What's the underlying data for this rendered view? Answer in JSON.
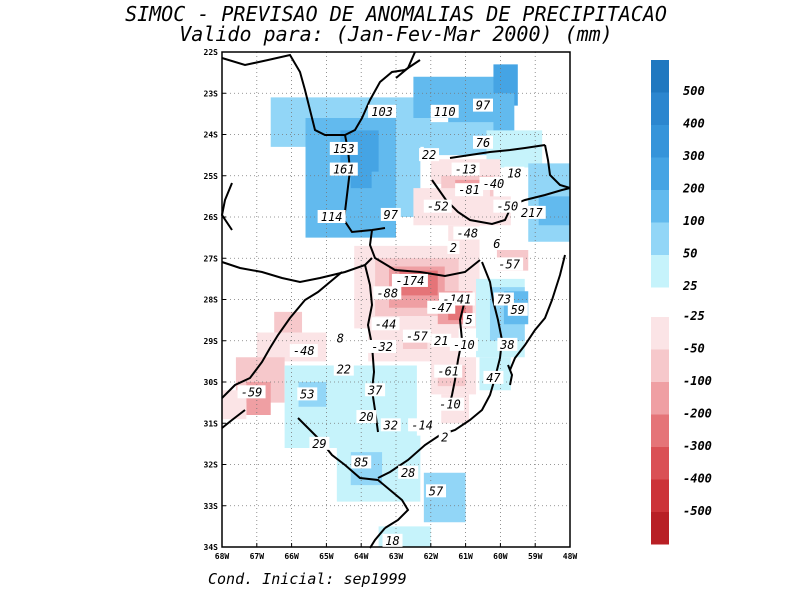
{
  "title_line1": "SIMOC - PREVISAO DE ANOMALIAS DE PRECIPITACAO",
  "title_line2": "Valido para: (Jan-Fev-Mar 2000) (mm)",
  "footer": "Cond. Inicial: sep1999",
  "axes": {
    "lon_ticks": [
      "68W",
      "67W",
      "66W",
      "65W",
      "64W",
      "63W",
      "62W",
      "61W",
      "60W",
      "59W",
      "48W"
    ],
    "lat_ticks": [
      "22S",
      "23S",
      "24S",
      "25S",
      "26S",
      "27S",
      "28S",
      "29S",
      "30S",
      "31S",
      "32S",
      "33S",
      "34S"
    ]
  },
  "legend": {
    "positive": [
      {
        "label": "500",
        "color": "#1f78c0"
      },
      {
        "label": "400",
        "color": "#2b86cf"
      },
      {
        "label": "300",
        "color": "#3594da"
      },
      {
        "label": "200",
        "color": "#45a4e4"
      },
      {
        "label": "100",
        "color": "#62baee"
      },
      {
        "label": "50",
        "color": "#92d6f7"
      },
      {
        "label": "25",
        "color": "#c6f3fb"
      }
    ],
    "negative": [
      {
        "label": "-25",
        "color": "#fbe4e6"
      },
      {
        "label": "-50",
        "color": "#f6c8cb"
      },
      {
        "label": "-100",
        "color": "#ef9fa3"
      },
      {
        "label": "-200",
        "color": "#e57478"
      },
      {
        "label": "-300",
        "color": "#da5055"
      },
      {
        "label": "-400",
        "color": "#cc3338"
      },
      {
        "label": "-500",
        "color": "#b81f25"
      }
    ]
  },
  "value_labels": [
    {
      "lon": -63.4,
      "lat": -23.45,
      "text": "103"
    },
    {
      "lon": -61.6,
      "lat": -23.45,
      "text": "110"
    },
    {
      "lon": -60.5,
      "lat": -23.3,
      "text": "97"
    },
    {
      "lon": -64.5,
      "lat": -24.35,
      "text": "153"
    },
    {
      "lon": -64.5,
      "lat": -24.85,
      "text": "161"
    },
    {
      "lon": -60.5,
      "lat": -24.2,
      "text": "76"
    },
    {
      "lon": -62.05,
      "lat": -24.5,
      "text": "22"
    },
    {
      "lon": -61.0,
      "lat": -24.85,
      "text": "-13"
    },
    {
      "lon": -59.6,
      "lat": -24.95,
      "text": "18"
    },
    {
      "lon": -60.2,
      "lat": -25.2,
      "text": "-40"
    },
    {
      "lon": -60.9,
      "lat": -25.35,
      "text": "-81"
    },
    {
      "lon": -61.8,
      "lat": -25.75,
      "text": "-52"
    },
    {
      "lon": -59.8,
      "lat": -25.75,
      "text": "-50"
    },
    {
      "lon": -59.1,
      "lat": -25.9,
      "text": "217"
    },
    {
      "lon": -63.15,
      "lat": -25.95,
      "text": "97"
    },
    {
      "lon": -64.85,
      "lat": -26.0,
      "text": "114"
    },
    {
      "lon": -60.95,
      "lat": -26.4,
      "text": "-48"
    },
    {
      "lon": -60.1,
      "lat": -26.65,
      "text": "6"
    },
    {
      "lon": -61.35,
      "lat": -26.75,
      "text": "2"
    },
    {
      "lon": -59.75,
      "lat": -27.15,
      "text": "-57"
    },
    {
      "lon": -62.6,
      "lat": -27.55,
      "text": "-174"
    },
    {
      "lon": -63.25,
      "lat": -27.85,
      "text": "-88"
    },
    {
      "lon": -61.25,
      "lat": -28.0,
      "text": "-141"
    },
    {
      "lon": -61.7,
      "lat": -28.2,
      "text": "-47"
    },
    {
      "lon": -59.9,
      "lat": -28.0,
      "text": "73"
    },
    {
      "lon": -59.5,
      "lat": -28.25,
      "text": "59"
    },
    {
      "lon": -60.9,
      "lat": -28.5,
      "text": "5"
    },
    {
      "lon": -63.3,
      "lat": -28.6,
      "text": "-44"
    },
    {
      "lon": -65.65,
      "lat": -29.25,
      "text": "-48"
    },
    {
      "lon": -64.6,
      "lat": -28.95,
      "text": "8"
    },
    {
      "lon": -62.4,
      "lat": -28.9,
      "text": "-57"
    },
    {
      "lon": -61.7,
      "lat": -29.0,
      "text": "21"
    },
    {
      "lon": -61.05,
      "lat": -29.1,
      "text": "-10"
    },
    {
      "lon": -59.8,
      "lat": -29.1,
      "text": "38"
    },
    {
      "lon": -63.4,
      "lat": -29.15,
      "text": "-32"
    },
    {
      "lon": -64.5,
      "lat": -29.7,
      "text": "22"
    },
    {
      "lon": -61.5,
      "lat": -29.75,
      "text": "-61"
    },
    {
      "lon": -60.2,
      "lat": -29.9,
      "text": "47"
    },
    {
      "lon": -63.6,
      "lat": -30.2,
      "text": "37"
    },
    {
      "lon": -67.15,
      "lat": -30.25,
      "text": "-59"
    },
    {
      "lon": -65.55,
      "lat": -30.3,
      "text": "53"
    },
    {
      "lon": -61.45,
      "lat": -30.55,
      "text": "-10"
    },
    {
      "lon": -63.85,
      "lat": -30.85,
      "text": "20"
    },
    {
      "lon": -63.15,
      "lat": -31.05,
      "text": "32"
    },
    {
      "lon": -62.25,
      "lat": -31.05,
      "text": "-14"
    },
    {
      "lon": -61.6,
      "lat": -31.35,
      "text": "2"
    },
    {
      "lon": -65.2,
      "lat": -31.5,
      "text": "29"
    },
    {
      "lon": -64.0,
      "lat": -31.95,
      "text": "85"
    },
    {
      "lon": -62.65,
      "lat": -32.2,
      "text": "28"
    },
    {
      "lon": -61.85,
      "lat": -32.65,
      "text": "57"
    },
    {
      "lon": -63.1,
      "lat": -33.85,
      "text": "18"
    }
  ]
}
